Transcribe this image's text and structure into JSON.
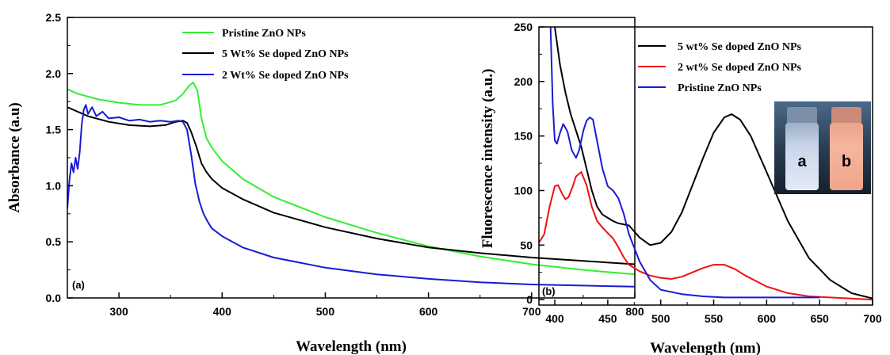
{
  "chart_data": [
    {
      "type": "line",
      "panel_label": "(a)",
      "xlabel": "Wavelength (nm)",
      "ylabel": "Absorbance (a.u)",
      "xlim": [
        250,
        800
      ],
      "ylim": [
        0.0,
        2.5
      ],
      "xticks": [
        300,
        400,
        500,
        600,
        700,
        800
      ],
      "yticks": [
        0.0,
        0.5,
        1.0,
        1.5,
        2.0,
        2.5
      ],
      "xtick_labels": [
        "300",
        "400",
        "500",
        "600",
        "700",
        "800"
      ],
      "ytick_labels": [
        "0.0",
        "0.5",
        "1.0",
        "1.5",
        "2.0",
        "2.5"
      ],
      "legend_position": "top-right",
      "series": [
        {
          "name": "Pristine ZnO NPs",
          "color": "#33ee33",
          "x": [
            250,
            260,
            280,
            300,
            320,
            340,
            355,
            362,
            368,
            372,
            376,
            380,
            385,
            390,
            400,
            420,
            450,
            500,
            550,
            600,
            650,
            700,
            750,
            800
          ],
          "y": [
            1.86,
            1.82,
            1.77,
            1.74,
            1.72,
            1.72,
            1.76,
            1.82,
            1.89,
            1.92,
            1.85,
            1.6,
            1.42,
            1.34,
            1.22,
            1.06,
            0.9,
            0.72,
            0.58,
            0.46,
            0.37,
            0.3,
            0.25,
            0.21
          ]
        },
        {
          "name": "5 Wt% Se doped ZnO NPs",
          "color": "#000000",
          "x": [
            250,
            270,
            290,
            310,
            330,
            345,
            355,
            362,
            366,
            370,
            375,
            380,
            385,
            390,
            400,
            420,
            450,
            500,
            550,
            600,
            650,
            700,
            750,
            800
          ],
          "y": [
            1.7,
            1.62,
            1.57,
            1.54,
            1.53,
            1.54,
            1.57,
            1.58,
            1.56,
            1.48,
            1.35,
            1.2,
            1.12,
            1.06,
            0.98,
            0.88,
            0.76,
            0.63,
            0.53,
            0.45,
            0.4,
            0.36,
            0.33,
            0.3
          ]
        },
        {
          "name": "2 Wt% Se doped ZnO NPs",
          "color": "#1a1ad6",
          "x": [
            250,
            252,
            254,
            256,
            258,
            260,
            262,
            264,
            266,
            268,
            270,
            274,
            278,
            284,
            290,
            300,
            310,
            320,
            330,
            340,
            350,
            358,
            362,
            366,
            370,
            374,
            378,
            382,
            386,
            390,
            400,
            420,
            450,
            500,
            550,
            600,
            650,
            700,
            750,
            800
          ],
          "y": [
            0.8,
            1.05,
            1.2,
            1.12,
            1.25,
            1.15,
            1.3,
            1.55,
            1.68,
            1.72,
            1.64,
            1.7,
            1.62,
            1.66,
            1.6,
            1.61,
            1.58,
            1.59,
            1.57,
            1.58,
            1.57,
            1.58,
            1.57,
            1.5,
            1.28,
            1.02,
            0.86,
            0.75,
            0.68,
            0.62,
            0.55,
            0.45,
            0.36,
            0.27,
            0.21,
            0.17,
            0.14,
            0.12,
            0.11,
            0.1
          ]
        }
      ]
    },
    {
      "type": "line",
      "panel_label": "(b)",
      "xlabel": "Wavelength (nm)",
      "ylabel": "Fluorescence intensity (a.u.)",
      "xlim": [
        385,
        700
      ],
      "ylim": [
        -5,
        250
      ],
      "xticks": [
        400,
        450,
        500,
        550,
        600,
        650,
        700
      ],
      "yticks": [
        0,
        50,
        100,
        150,
        200,
        250
      ],
      "xtick_labels": [
        "400",
        "450",
        "500",
        "550",
        "600",
        "650",
        "700"
      ],
      "ytick_labels": [
        "0",
        "50",
        "100",
        "150",
        "200",
        "250"
      ],
      "legend_position": "top-right",
      "inset_labels": [
        "a",
        "b"
      ],
      "series": [
        {
          "name": "5 wt% Se doped ZnO NPs",
          "color": "#000000",
          "x": [
            397,
            400,
            405,
            410,
            415,
            420,
            425,
            430,
            435,
            440,
            445,
            450,
            455,
            460,
            465,
            470,
            480,
            490,
            500,
            510,
            520,
            530,
            540,
            550,
            560,
            567,
            575,
            585,
            600,
            620,
            640,
            660,
            680,
            700
          ],
          "y": [
            260,
            250,
            215,
            190,
            170,
            155,
            140,
            120,
            100,
            85,
            78,
            75,
            72,
            70,
            69,
            68,
            57,
            50,
            52,
            62,
            80,
            105,
            130,
            153,
            167,
            170,
            165,
            150,
            117,
            72,
            38,
            18,
            6,
            1
          ]
        },
        {
          "name": "2 wt% Se doped ZnO NPs",
          "color": "#ee1111",
          "x": [
            385,
            390,
            395,
            400,
            403,
            407,
            410,
            413,
            417,
            420,
            425,
            430,
            435,
            440,
            445,
            450,
            455,
            460,
            465,
            470,
            480,
            490,
            500,
            510,
            520,
            530,
            540,
            550,
            560,
            570,
            580,
            600,
            620,
            640,
            660,
            680,
            700
          ],
          "y": [
            52,
            60,
            85,
            104,
            105,
            97,
            92,
            94,
            104,
            113,
            117,
            105,
            85,
            72,
            66,
            61,
            56,
            48,
            39,
            32,
            26,
            22,
            20,
            19,
            21,
            25,
            29,
            32,
            32,
            28,
            22,
            12,
            6,
            3,
            2,
            1,
            0
          ]
        },
        {
          "name": "Pristine ZnO NPs",
          "color": "#1a1ad6",
          "x": [
            396,
            398,
            400,
            402,
            405,
            408,
            412,
            416,
            420,
            423,
            427,
            430,
            433,
            436,
            440,
            445,
            450,
            455,
            460,
            465,
            470,
            480,
            490,
            500,
            520,
            540,
            560,
            600,
            650
          ],
          "y": [
            250,
            180,
            146,
            143,
            153,
            161,
            154,
            137,
            130,
            137,
            155,
            164,
            167,
            165,
            145,
            120,
            104,
            100,
            93,
            79,
            60,
            35,
            18,
            9,
            5,
            3,
            2,
            2,
            2
          ]
        }
      ]
    }
  ]
}
